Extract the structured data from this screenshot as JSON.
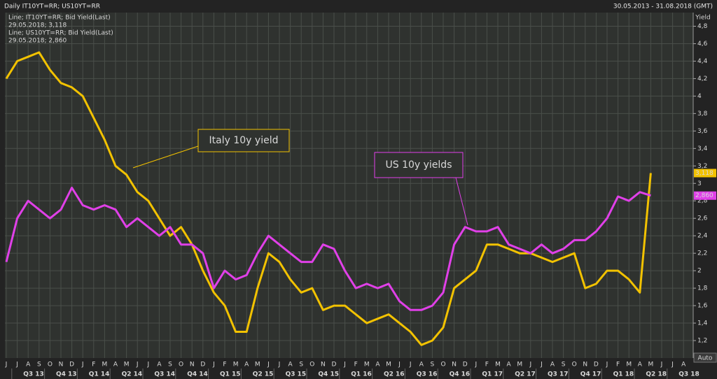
{
  "chart_data": {
    "type": "line",
    "title": "Daily IT10YT=RR; US10YT=RR",
    "date_range": "30.05.2013 - 31.08.2018 (GMT)",
    "y_axis_label": "Yield",
    "button": "Auto",
    "categories": [
      "J",
      "J",
      "A",
      "S",
      "O",
      "N",
      "D",
      "J",
      "F",
      "M",
      "A",
      "M",
      "J",
      "J",
      "A",
      "S",
      "O",
      "N",
      "D",
      "J",
      "F",
      "M",
      "A",
      "M",
      "J",
      "J",
      "A",
      "S",
      "O",
      "N",
      "D",
      "J",
      "F",
      "M",
      "A",
      "M",
      "J",
      "J",
      "A",
      "S",
      "O",
      "N",
      "D",
      "J",
      "F",
      "M",
      "A",
      "M",
      "J",
      "J",
      "A",
      "S",
      "O",
      "N",
      "D",
      "J",
      "F",
      "M",
      "A",
      "M",
      "J",
      "J",
      "A"
    ],
    "quarters": [
      "Q3 13",
      "Q4 13",
      "Q1 14",
      "Q2 14",
      "Q3 14",
      "Q4 14",
      "Q1 15",
      "Q2 15",
      "Q3 15",
      "Q4 15",
      "Q1 16",
      "Q2 16",
      "Q3 16",
      "Q4 16",
      "Q1 17",
      "Q2 17",
      "Q3 17",
      "Q4 17",
      "Q1 18",
      "Q2 18",
      "Q3 18"
    ],
    "series": [
      {
        "name": "Line; IT10YT=RR; Bid Yield(Last)",
        "legend_detail": "29.05.2018; 3,118",
        "last_value_label": "3,118",
        "annotation": "Italy 10y yield",
        "color": "#f2c200",
        "values": [
          4.2,
          4.4,
          4.45,
          4.5,
          4.3,
          4.15,
          4.1,
          4.0,
          3.75,
          3.5,
          3.2,
          3.1,
          2.9,
          2.8,
          2.6,
          2.4,
          2.5,
          2.3,
          2.0,
          1.75,
          1.6,
          1.3,
          1.3,
          1.8,
          2.2,
          2.1,
          1.9,
          1.75,
          1.8,
          1.55,
          1.6,
          1.6,
          1.5,
          1.4,
          1.45,
          1.5,
          1.4,
          1.3,
          1.15,
          1.2,
          1.35,
          1.8,
          1.9,
          2.0,
          2.3,
          2.3,
          2.25,
          2.2,
          2.2,
          2.15,
          2.1,
          2.15,
          2.2,
          1.8,
          1.85,
          2.0,
          2.0,
          1.9,
          1.75,
          3.118,
          null,
          null,
          null
        ]
      },
      {
        "name": "Line; US10YT=RR; Bid Yield(Last)",
        "legend_detail": "29.05.2018; 2,860",
        "last_value_label": "2,860",
        "annotation": "US 10y yields",
        "color": "#e040e8",
        "values": [
          2.1,
          2.6,
          2.8,
          2.7,
          2.6,
          2.7,
          2.95,
          2.75,
          2.7,
          2.75,
          2.7,
          2.5,
          2.6,
          2.5,
          2.4,
          2.5,
          2.3,
          2.3,
          2.2,
          1.8,
          2.0,
          1.9,
          1.95,
          2.2,
          2.4,
          2.3,
          2.2,
          2.1,
          2.1,
          2.3,
          2.25,
          2.0,
          1.8,
          1.85,
          1.8,
          1.85,
          1.65,
          1.55,
          1.55,
          1.6,
          1.75,
          2.3,
          2.5,
          2.45,
          2.45,
          2.5,
          2.3,
          2.25,
          2.2,
          2.3,
          2.2,
          2.25,
          2.35,
          2.35,
          2.45,
          2.6,
          2.85,
          2.8,
          2.9,
          2.86,
          null,
          null,
          null
        ]
      }
    ],
    "ylim": [
      1.0,
      4.9
    ],
    "yticks": [
      {
        "value": 1.2,
        "label": "1,2"
      },
      {
        "value": 1.4,
        "label": "1,4"
      },
      {
        "value": 1.6,
        "label": "1,6"
      },
      {
        "value": 1.8,
        "label": "1,8"
      },
      {
        "value": 2,
        "label": "2"
      },
      {
        "value": 2.2,
        "label": "2,2"
      },
      {
        "value": 2.4,
        "label": "2,4"
      },
      {
        "value": 2.6,
        "label": "2,6"
      },
      {
        "value": 2.8,
        "label": "2,8"
      },
      {
        "value": 3,
        "label": "3"
      },
      {
        "value": 3.2,
        "label": "3,2"
      },
      {
        "value": 3.4,
        "label": "3,4"
      },
      {
        "value": 3.6,
        "label": "3,6"
      },
      {
        "value": 3.8,
        "label": "3,8"
      },
      {
        "value": 4,
        "label": "4"
      },
      {
        "value": 4.2,
        "label": "4,2"
      },
      {
        "value": 4.4,
        "label": "4,4"
      },
      {
        "value": 4.6,
        "label": "4,6"
      },
      {
        "value": 4.8,
        "label": "4,8"
      }
    ],
    "grid": true
  }
}
